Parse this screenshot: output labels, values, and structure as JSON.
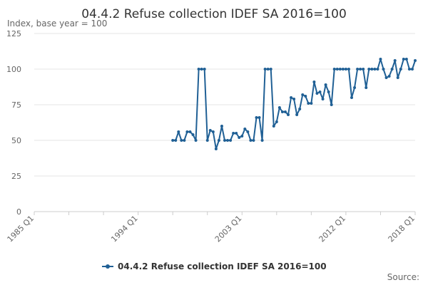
{
  "chart_data": {
    "type": "line",
    "title": "04.4.2 Refuse collection IDEF SA 2016=100",
    "ylabel": "Index, base year = 100",
    "xlabel": "",
    "x_ticks": [
      "1985 Q1",
      "1994 Q1",
      "2003 Q1",
      "2012 Q1",
      "2018 Q1"
    ],
    "y_ticks": [
      0,
      25,
      50,
      75,
      100,
      125
    ],
    "ylim": [
      0,
      125
    ],
    "xlim": [
      "1985 Q1",
      "2018 Q1"
    ],
    "grid": "horizontal",
    "legend_position": "bottom",
    "line_color": "#206095",
    "series": [
      {
        "name": "04.4.2 Refuse collection IDEF SA 2016=100",
        "start": "1997 Q1",
        "values": [
          50,
          50,
          56,
          50,
          50,
          56,
          56,
          54,
          50,
          100,
          100,
          100,
          50,
          57,
          56,
          44,
          50,
          60,
          50,
          50,
          50,
          55,
          55,
          52,
          53,
          58,
          56,
          50,
          50,
          66,
          66,
          50,
          100,
          100,
          100,
          60,
          63,
          73,
          70,
          70,
          68,
          80,
          79,
          68,
          72,
          82,
          81,
          76,
          76,
          91,
          83,
          84,
          79,
          89,
          84,
          75,
          100,
          100,
          100,
          100,
          100,
          100,
          80,
          87,
          100,
          100,
          100,
          87,
          100,
          100,
          100,
          100,
          107,
          100,
          94,
          95,
          100,
          106,
          94,
          100,
          107,
          107,
          100,
          100,
          106
        ]
      }
    ]
  },
  "source_label": "Source:"
}
